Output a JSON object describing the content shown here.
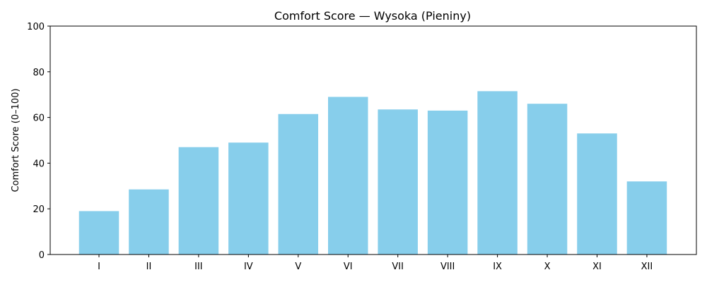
{
  "chart_data": {
    "type": "bar",
    "title": "Comfort Score — Wysoka (Pieniny)",
    "xlabel": "",
    "ylabel": "Comfort Score (0–100)",
    "categories": [
      "I",
      "II",
      "III",
      "IV",
      "V",
      "VI",
      "VII",
      "VIII",
      "IX",
      "X",
      "XI",
      "XII"
    ],
    "values": [
      19,
      28.5,
      47,
      49,
      61.5,
      69,
      63.5,
      63,
      71.5,
      66,
      53,
      32
    ],
    "ylim": [
      0,
      100
    ],
    "yticks": [
      0,
      20,
      40,
      60,
      80,
      100
    ],
    "bar_color": "#87CEEB",
    "grid": false,
    "legend": false
  }
}
